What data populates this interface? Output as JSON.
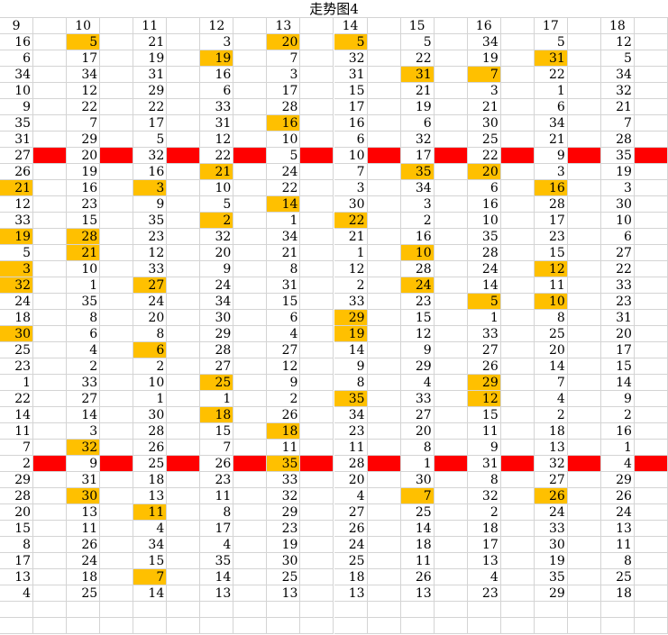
{
  "title": "走势图4",
  "headers": [
    "9",
    "10",
    "11",
    "12",
    "13",
    "14",
    "15",
    "16",
    "17",
    "18"
  ],
  "colors": {
    "highlight": "#ffc000",
    "marker": "#ff0000",
    "grid": "#d4d4d4"
  },
  "rows": [
    [
      "16",
      "5",
      "21",
      "3",
      "20",
      "5",
      "5",
      "34",
      "5",
      "12"
    ],
    [
      "6",
      "17",
      "19",
      "19",
      "7",
      "32",
      "22",
      "19",
      "31",
      "5"
    ],
    [
      "34",
      "34",
      "31",
      "16",
      "3",
      "31",
      "31",
      "7",
      "22",
      "34"
    ],
    [
      "10",
      "12",
      "29",
      "6",
      "17",
      "15",
      "21",
      "3",
      "1",
      "32"
    ],
    [
      "9",
      "22",
      "22",
      "33",
      "28",
      "17",
      "19",
      "21",
      "6",
      "21"
    ],
    [
      "35",
      "7",
      "17",
      "31",
      "16",
      "16",
      "6",
      "30",
      "34",
      "7"
    ],
    [
      "31",
      "29",
      "5",
      "12",
      "10",
      "6",
      "32",
      "25",
      "21",
      "28"
    ],
    [
      "27",
      "20",
      "32",
      "22",
      "5",
      "10",
      "17",
      "22",
      "9",
      "35"
    ],
    [
      "26",
      "19",
      "16",
      "21",
      "24",
      "7",
      "35",
      "20",
      "3",
      "19"
    ],
    [
      "21",
      "16",
      "3",
      "10",
      "22",
      "3",
      "34",
      "6",
      "16",
      "3"
    ],
    [
      "12",
      "23",
      "9",
      "5",
      "14",
      "30",
      "3",
      "16",
      "28",
      "30"
    ],
    [
      "33",
      "15",
      "35",
      "2",
      "1",
      "22",
      "2",
      "10",
      "17",
      "10"
    ],
    [
      "19",
      "28",
      "23",
      "32",
      "34",
      "21",
      "16",
      "35",
      "23",
      "6"
    ],
    [
      "5",
      "21",
      "12",
      "20",
      "21",
      "1",
      "10",
      "28",
      "15",
      "27"
    ],
    [
      "3",
      "10",
      "33",
      "9",
      "8",
      "12",
      "28",
      "24",
      "12",
      "22"
    ],
    [
      "32",
      "1",
      "27",
      "24",
      "31",
      "2",
      "24",
      "14",
      "11",
      "33"
    ],
    [
      "24",
      "35",
      "24",
      "34",
      "15",
      "33",
      "23",
      "5",
      "10",
      "23"
    ],
    [
      "18",
      "8",
      "20",
      "30",
      "6",
      "29",
      "15",
      "1",
      "8",
      "31"
    ],
    [
      "30",
      "6",
      "8",
      "29",
      "4",
      "19",
      "12",
      "33",
      "25",
      "20"
    ],
    [
      "25",
      "4",
      "6",
      "28",
      "27",
      "14",
      "9",
      "27",
      "20",
      "17"
    ],
    [
      "23",
      "2",
      "2",
      "27",
      "12",
      "9",
      "29",
      "26",
      "14",
      "15"
    ],
    [
      "1",
      "33",
      "10",
      "25",
      "9",
      "8",
      "4",
      "29",
      "7",
      "14"
    ],
    [
      "22",
      "27",
      "1",
      "1",
      "2",
      "35",
      "33",
      "12",
      "4",
      "9"
    ],
    [
      "14",
      "14",
      "30",
      "18",
      "26",
      "34",
      "27",
      "15",
      "2",
      "2"
    ],
    [
      "11",
      "3",
      "28",
      "15",
      "18",
      "23",
      "20",
      "11",
      "18",
      "16"
    ],
    [
      "7",
      "32",
      "26",
      "7",
      "11",
      "11",
      "8",
      "9",
      "13",
      "1"
    ],
    [
      "2",
      "9",
      "25",
      "26",
      "35",
      "28",
      "1",
      "31",
      "32",
      "4"
    ],
    [
      "29",
      "31",
      "18",
      "23",
      "33",
      "20",
      "30",
      "8",
      "27",
      "29"
    ],
    [
      "28",
      "30",
      "13",
      "11",
      "32",
      "4",
      "7",
      "32",
      "26",
      "26"
    ],
    [
      "20",
      "13",
      "11",
      "8",
      "29",
      "27",
      "25",
      "2",
      "24",
      "24"
    ],
    [
      "15",
      "11",
      "4",
      "17",
      "23",
      "26",
      "14",
      "18",
      "33",
      "13"
    ],
    [
      "8",
      "26",
      "34",
      "4",
      "19",
      "24",
      "18",
      "17",
      "30",
      "11"
    ],
    [
      "17",
      "24",
      "15",
      "35",
      "30",
      "25",
      "11",
      "13",
      "19",
      "8"
    ],
    [
      "13",
      "18",
      "7",
      "14",
      "25",
      "18",
      "26",
      "4",
      "35",
      "25"
    ],
    [
      "4",
      "25",
      "14",
      "13",
      "13",
      "13",
      "13",
      "23",
      "29",
      "18"
    ]
  ],
  "highlights": [
    [
      0,
      1
    ],
    [
      0,
      4
    ],
    [
      0,
      5
    ],
    [
      1,
      3
    ],
    [
      1,
      8
    ],
    [
      2,
      6
    ],
    [
      2,
      7
    ],
    [
      5,
      4
    ],
    [
      8,
      3
    ],
    [
      8,
      6
    ],
    [
      8,
      7
    ],
    [
      9,
      0
    ],
    [
      9,
      2
    ],
    [
      9,
      8
    ],
    [
      10,
      4
    ],
    [
      11,
      3
    ],
    [
      11,
      5
    ],
    [
      12,
      0
    ],
    [
      12,
      1
    ],
    [
      13,
      1
    ],
    [
      13,
      6
    ],
    [
      14,
      0
    ],
    [
      14,
      8
    ],
    [
      15,
      0
    ],
    [
      15,
      2
    ],
    [
      15,
      6
    ],
    [
      16,
      7
    ],
    [
      16,
      8
    ],
    [
      17,
      5
    ],
    [
      18,
      0
    ],
    [
      18,
      5
    ],
    [
      19,
      2
    ],
    [
      21,
      3
    ],
    [
      21,
      7
    ],
    [
      22,
      5
    ],
    [
      22,
      7
    ],
    [
      23,
      3
    ],
    [
      24,
      4
    ],
    [
      25,
      1
    ],
    [
      26,
      4
    ],
    [
      28,
      1
    ],
    [
      28,
      6
    ],
    [
      28,
      8
    ],
    [
      29,
      2
    ],
    [
      33,
      2
    ]
  ],
  "marker_rows": [
    7,
    26
  ]
}
